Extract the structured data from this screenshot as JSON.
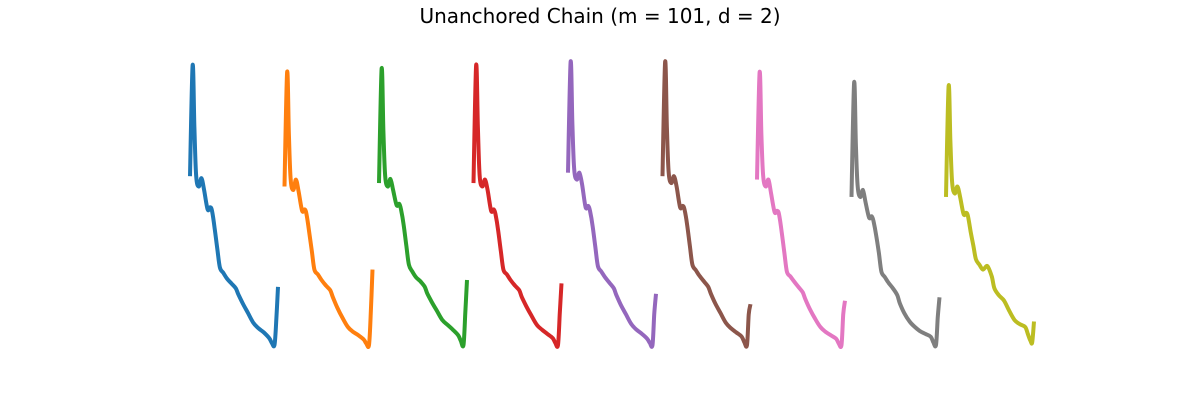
{
  "chart_data": {
    "type": "line",
    "title": "Unanchored Chain (m = 101, d = 2)",
    "xlabel": "",
    "ylabel": "",
    "axes_visible": false,
    "grid": false,
    "legend": "none",
    "x": [
      0.0,
      0.03,
      0.05,
      0.07,
      0.1,
      0.13,
      0.16,
      0.2,
      0.23,
      0.25,
      0.28,
      0.31,
      0.34,
      0.38,
      0.42,
      0.47,
      0.52,
      0.55,
      0.6,
      0.66,
      0.72,
      0.78,
      0.84,
      0.9,
      0.93,
      0.96,
      0.98,
      1.0
    ],
    "series": [
      {
        "color": "#1f77b4",
        "values": [
          1.0,
          2.6,
          1.7,
          1.0,
          0.85,
          0.97,
          0.8,
          0.52,
          0.55,
          0.5,
          0.25,
          -0.05,
          -0.32,
          -0.4,
          -0.48,
          -0.55,
          -0.62,
          -0.71,
          -0.84,
          -0.98,
          -1.12,
          -1.2,
          -1.26,
          -1.34,
          -1.41,
          -1.44,
          -1.1,
          -0.6
        ]
      },
      {
        "color": "#ff7f0e",
        "values": [
          0.85,
          2.5,
          1.6,
          0.95,
          0.8,
          0.95,
          0.78,
          0.5,
          0.52,
          0.45,
          0.2,
          -0.08,
          -0.35,
          -0.42,
          -0.5,
          -0.58,
          -0.65,
          -0.75,
          -0.9,
          -1.05,
          -1.18,
          -1.25,
          -1.3,
          -1.36,
          -1.42,
          -1.44,
          -1.0,
          -0.35
        ]
      },
      {
        "color": "#2ca02c",
        "values": [
          0.9,
          2.55,
          1.65,
          1.0,
          0.85,
          0.96,
          0.8,
          0.58,
          0.6,
          0.52,
          0.3,
          0.0,
          -0.28,
          -0.38,
          -0.46,
          -0.52,
          -0.6,
          -0.7,
          -0.82,
          -0.95,
          -1.08,
          -1.15,
          -1.22,
          -1.3,
          -1.38,
          -1.44,
          -1.0,
          -0.5
        ]
      },
      {
        "color": "#d62728",
        "values": [
          0.9,
          2.6,
          1.7,
          1.0,
          0.85,
          0.95,
          0.8,
          0.5,
          0.52,
          0.45,
          0.22,
          -0.08,
          -0.35,
          -0.42,
          -0.5,
          -0.58,
          -0.65,
          -0.75,
          -0.88,
          -1.02,
          -1.15,
          -1.22,
          -1.28,
          -1.34,
          -1.41,
          -1.44,
          -1.0,
          -0.55
        ]
      },
      {
        "color": "#9467bd",
        "values": [
          1.05,
          2.65,
          1.75,
          1.1,
          0.95,
          1.05,
          0.88,
          0.55,
          0.57,
          0.5,
          0.28,
          -0.02,
          -0.3,
          -0.38,
          -0.46,
          -0.54,
          -0.62,
          -0.72,
          -0.86,
          -1.0,
          -1.14,
          -1.22,
          -1.28,
          -1.35,
          -1.41,
          -1.44,
          -1.0,
          -0.7
        ]
      },
      {
        "color": "#8c564b",
        "values": [
          1.0,
          2.65,
          1.7,
          1.05,
          0.9,
          1.0,
          0.85,
          0.55,
          0.57,
          0.52,
          0.3,
          0.0,
          -0.28,
          -0.36,
          -0.44,
          -0.52,
          -0.6,
          -0.7,
          -0.84,
          -0.98,
          -1.12,
          -1.2,
          -1.26,
          -1.32,
          -1.4,
          -1.44,
          -1.0,
          -0.85
        ]
      },
      {
        "color": "#e377c2",
        "values": [
          0.95,
          2.5,
          1.6,
          1.0,
          0.85,
          0.95,
          0.75,
          0.48,
          0.5,
          0.45,
          0.2,
          -0.1,
          -0.38,
          -0.45,
          -0.52,
          -0.6,
          -0.68,
          -0.78,
          -0.92,
          -1.06,
          -1.18,
          -1.25,
          -1.3,
          -1.35,
          -1.42,
          -1.44,
          -1.0,
          -0.8
        ]
      },
      {
        "color": "#7f7f7f",
        "values": [
          0.7,
          2.35,
          1.45,
          0.85,
          0.7,
          0.8,
          0.62,
          0.4,
          0.42,
          0.35,
          0.15,
          -0.1,
          -0.38,
          -0.46,
          -0.54,
          -0.62,
          -0.72,
          -0.84,
          -0.98,
          -1.1,
          -1.18,
          -1.24,
          -1.28,
          -1.32,
          -1.4,
          -1.44,
          -1.05,
          -0.75
        ]
      },
      {
        "color": "#bcbd22",
        "values": [
          0.7,
          2.3,
          1.5,
          0.9,
          0.75,
          0.85,
          0.7,
          0.45,
          0.47,
          0.42,
          0.2,
          0.0,
          -0.2,
          -0.28,
          -0.35,
          -0.3,
          -0.45,
          -0.62,
          -0.72,
          -0.8,
          -0.95,
          -1.08,
          -1.14,
          -1.18,
          -1.28,
          -1.38,
          -1.4,
          -1.1
        ]
      }
    ]
  }
}
